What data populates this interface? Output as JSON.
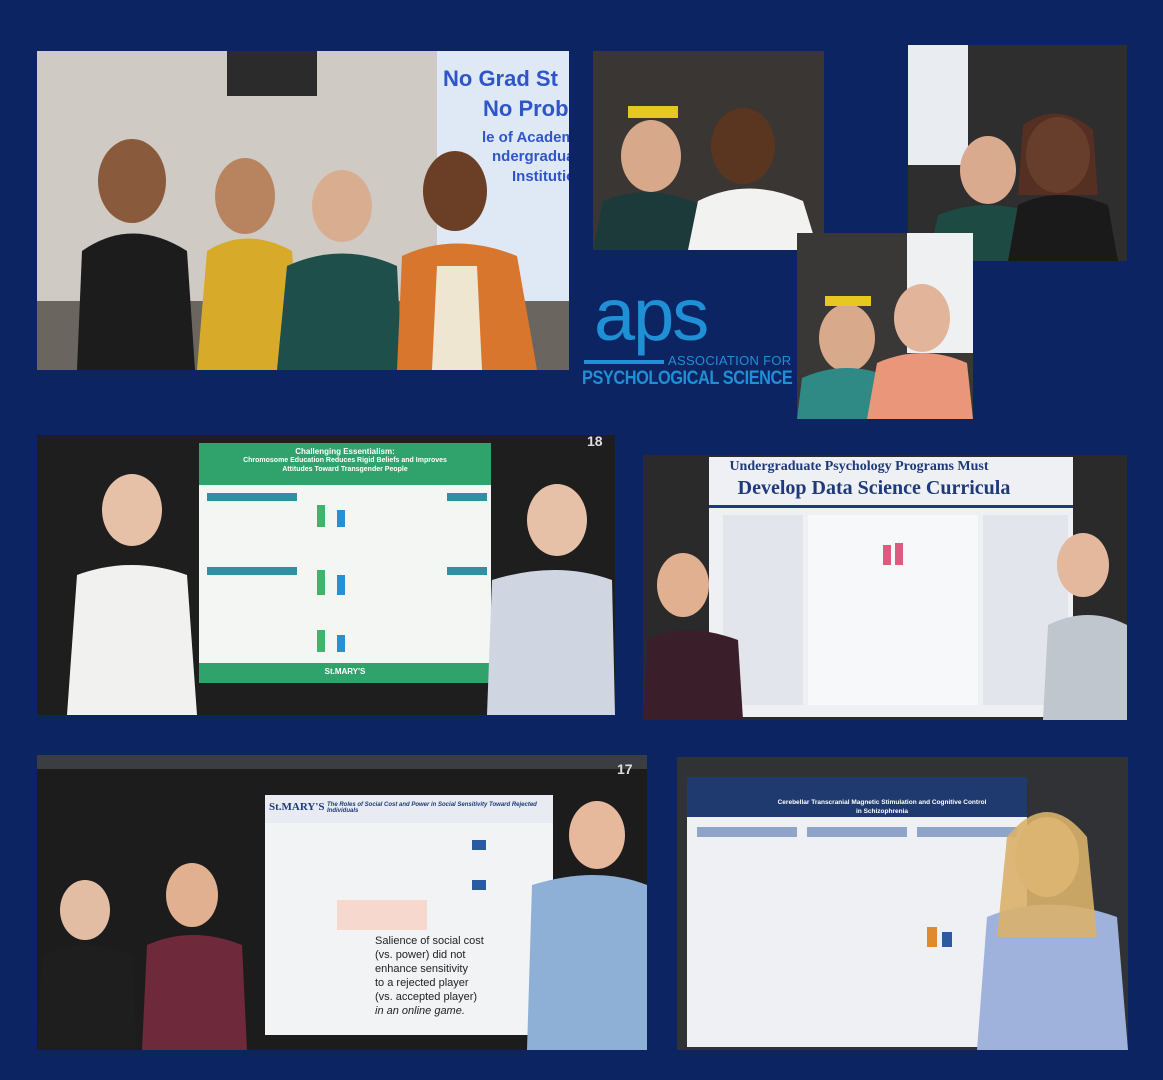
{
  "logo": {
    "wordmark": "aps",
    "line1": "ASSOCIATION FOR",
    "line2": "PSYCHOLOGICAL SCIENCE",
    "color": "#1f8fd6"
  },
  "background_color": "#0c2461",
  "photos": {
    "p1": {
      "slide_line1": "No Grad St",
      "slide_line2": "No Prob",
      "slide_line3": "le of Academ",
      "slide_line4": "ndergraduate",
      "slide_line5": "Institution"
    },
    "p5": {
      "poster_number": "18",
      "poster_title_line1": "Challenging Essentialism:",
      "poster_title_line2": "Chromosome Education Reduces Rigid Beliefs and Improves",
      "poster_title_line3": "Attitudes Toward Transgender People",
      "poster_footer": "St.MARY'S"
    },
    "p6": {
      "title_line1": "Undergraduate Psychology Programs Must",
      "title_line2": "Develop Data Science Curricula"
    },
    "p7": {
      "poster_number": "17",
      "poster_brand": "St.MARY'S",
      "poster_title": "The Roles of Social Cost and Power in Social Sensitivity Toward Rejected Individuals",
      "callout_line1": "Salience of social cost",
      "callout_line2": "(vs. power) did not",
      "callout_line3": "enhance sensitivity",
      "callout_line4": "to a rejected player",
      "callout_line5": "(vs. accepted player)",
      "callout_line6": "in an online game."
    },
    "p8": {
      "title_line1": "Cerebellar Transcranial Magnetic Stimulation and Cognitive Control",
      "title_line2": "in Schizophrenia"
    }
  }
}
